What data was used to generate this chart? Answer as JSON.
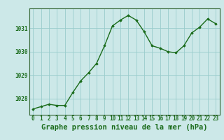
{
  "hours": [
    0,
    1,
    2,
    3,
    4,
    5,
    6,
    7,
    8,
    9,
    10,
    11,
    12,
    13,
    14,
    15,
    16,
    17,
    18,
    19,
    20,
    21,
    22,
    23
  ],
  "pressure": [
    1027.55,
    1027.65,
    1027.75,
    1027.7,
    1027.7,
    1028.25,
    1028.75,
    1029.1,
    1029.5,
    1030.25,
    1031.1,
    1031.35,
    1031.55,
    1031.35,
    1030.85,
    1030.25,
    1030.15,
    1030.0,
    1029.95,
    1030.25,
    1030.8,
    1031.05,
    1031.4,
    1031.2
  ],
  "line_color": "#1a6b1a",
  "marker": "D",
  "marker_size": 1.8,
  "line_width": 1.0,
  "background_color": "#cce8e8",
  "grid_color": "#99cccc",
  "xlabel": "Graphe pression niveau de la mer (hPa)",
  "xlabel_color": "#1a6b1a",
  "tick_color": "#1a6b1a",
  "ylim": [
    1027.3,
    1031.85
  ],
  "yticks": [
    1028,
    1029,
    1030,
    1031
  ],
  "xlim": [
    -0.5,
    23.5
  ],
  "xtick_labels": [
    "0",
    "1",
    "2",
    "3",
    "4",
    "5",
    "6",
    "7",
    "8",
    "9",
    "10",
    "11",
    "12",
    "13",
    "14",
    "15",
    "16",
    "17",
    "18",
    "19",
    "20",
    "21",
    "22",
    "23"
  ],
  "tick_fontsize": 5.5,
  "xlabel_fontsize": 7.5
}
